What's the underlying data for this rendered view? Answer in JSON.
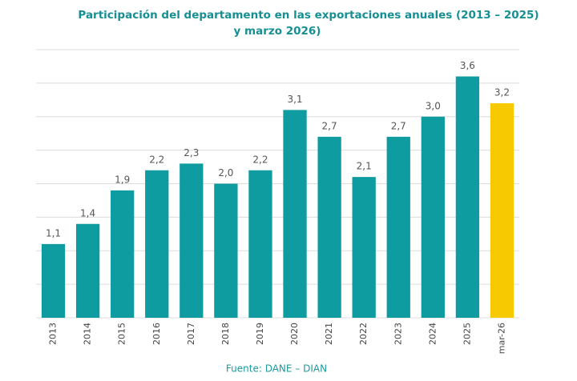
{
  "chart_data": {
    "type": "bar",
    "title": [
      "Participación del departamento en las exportaciones anuales (2013 – 2025)",
      "y marzo 2026)"
    ],
    "categories": [
      "2013",
      "2014",
      "2015",
      "2016",
      "2017",
      "2018",
      "2019",
      "2020",
      "2021",
      "2022",
      "2023",
      "2024",
      "2025",
      "mar-26"
    ],
    "values": [
      1.1,
      1.4,
      1.9,
      2.2,
      2.3,
      2.0,
      2.2,
      3.1,
      2.7,
      2.1,
      2.7,
      3.0,
      3.6,
      3.2
    ],
    "value_labels": [
      "1,1",
      "1,4",
      "1,9",
      "2,2",
      "2,3",
      "2,0",
      "2,2",
      "3,1",
      "2,7",
      "2,1",
      "2,7",
      "3,0",
      "3,6",
      "3,2"
    ],
    "colors": [
      "#0e9ca1",
      "#0e9ca1",
      "#0e9ca1",
      "#0e9ca1",
      "#0e9ca1",
      "#0e9ca1",
      "#0e9ca1",
      "#0e9ca1",
      "#0e9ca1",
      "#0e9ca1",
      "#0e9ca1",
      "#0e9ca1",
      "#0e9ca1",
      "#f6c900"
    ],
    "ylim": [
      0,
      4
    ],
    "yticks": [
      0,
      0.5,
      1,
      1.5,
      2,
      2.5,
      3,
      3.5,
      4
    ],
    "grid": true,
    "source": "Fuente: DANE – DIAN"
  }
}
